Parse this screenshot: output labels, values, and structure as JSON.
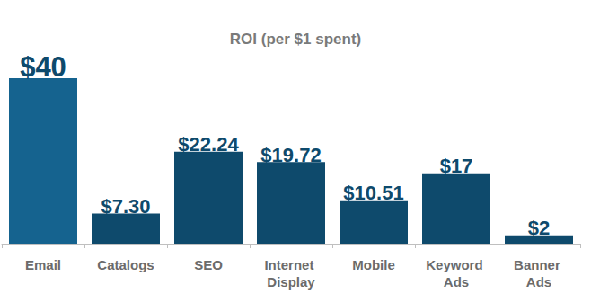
{
  "chart_data": {
    "type": "bar",
    "title": "ROI (per $1 spent)",
    "categories": [
      "Email",
      "Catalogs",
      "SEO",
      "Internet Display",
      "Mobile",
      "Keyword Ads",
      "Banner Ads"
    ],
    "values": [
      40,
      7.3,
      22.24,
      19.72,
      10.51,
      17,
      2
    ],
    "value_labels": [
      "$40",
      "$7.30",
      "$22.24",
      "$19.72",
      "$10.51",
      "$17",
      "$2"
    ],
    "colors": [
      "#15638f",
      "#0e4a6c",
      "#0e4a6c",
      "#0e4a6c",
      "#0e4a6c",
      "#0e4a6c",
      "#0e4a6c"
    ],
    "ylim": [
      0,
      40
    ],
    "grid": false,
    "data_labels": true,
    "tick_labels": "x"
  }
}
